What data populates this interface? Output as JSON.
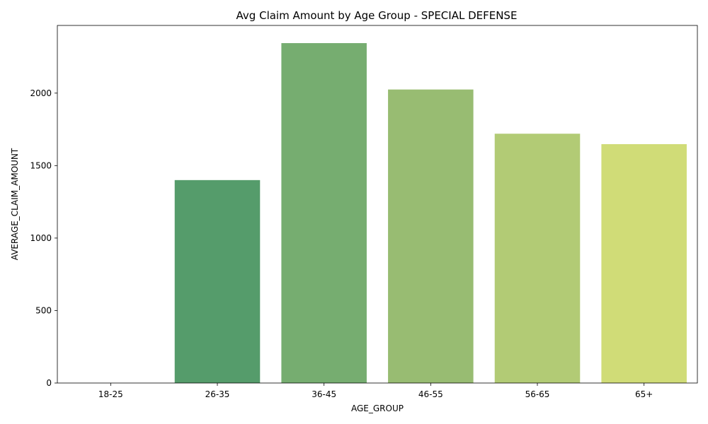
{
  "chart_data": {
    "type": "bar",
    "title": "Avg Claim Amount by Age Group - SPECIAL DEFENSE",
    "xlabel": "AGE_GROUP",
    "ylabel": "AVERAGE_CLAIM_AMOUNT",
    "categories": [
      "18-25",
      "26-35",
      "36-45",
      "46-55",
      "56-65",
      "65+"
    ],
    "values": [
      0,
      1400,
      2345,
      2025,
      1720,
      1648
    ],
    "colors": [
      "#2e8b57",
      "#559c6b",
      "#76ad70",
      "#98bc72",
      "#b2cb75",
      "#d0dc77"
    ],
    "ylim": [
      0,
      2467
    ],
    "yticks": [
      0,
      500,
      1000,
      1500,
      2000
    ],
    "grid": false,
    "legend": "none"
  }
}
